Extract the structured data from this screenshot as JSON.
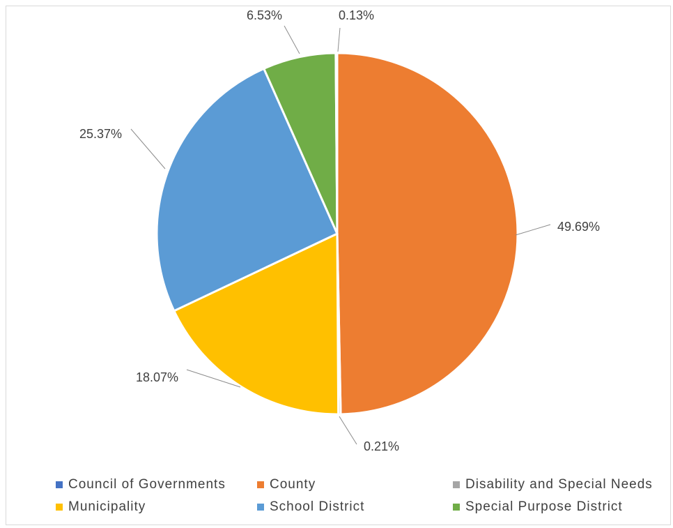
{
  "chart_data": {
    "type": "pie",
    "title": "",
    "slices": [
      {
        "name": "Council of Governments",
        "value": 0.0,
        "label": "",
        "color": "#4472C4"
      },
      {
        "name": "County",
        "value": 49.69,
        "label": "49.69%",
        "color": "#ED7D31"
      },
      {
        "name": "Disability and Special Needs",
        "value": 0.21,
        "label": "0.21%",
        "color": "#A5A5A5"
      },
      {
        "name": "Municipality",
        "value": 18.07,
        "label": "18.07%",
        "color": "#FFC000"
      },
      {
        "name": "School District",
        "value": 25.37,
        "label": "25.37%",
        "color": "#5B9BD5"
      },
      {
        "name": "Special Purpose District",
        "value": 6.53,
        "label": "6.53%",
        "color": "#70AD47"
      },
      {
        "name": "",
        "value": 0.13,
        "label": "0.13%",
        "color": "#4472C4"
      }
    ],
    "legend": {
      "position": "bottom",
      "entries": [
        {
          "name": "Council of Governments",
          "color": "#4472C4"
        },
        {
          "name": "County",
          "color": "#ED7D31"
        },
        {
          "name": "Disability and Special Needs",
          "color": "#A5A5A5"
        },
        {
          "name": "Municipality",
          "color": "#FFC000"
        },
        {
          "name": "School District",
          "color": "#5B9BD5"
        },
        {
          "name": "Special Purpose District",
          "color": "#70AD47"
        }
      ]
    }
  }
}
